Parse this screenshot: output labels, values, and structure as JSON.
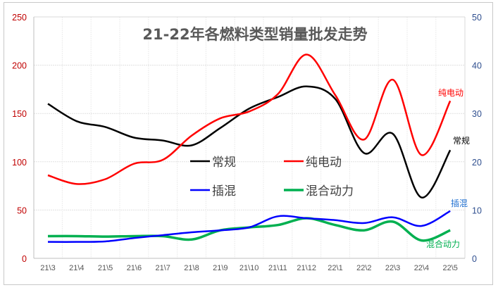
{
  "chart_data": {
    "type": "line",
    "title": "21-22年各燃料类型销量批发走势",
    "categories": [
      "21\\3",
      "21\\4",
      "21\\5",
      "21\\6",
      "21\\7",
      "21\\8",
      "21\\9",
      "21\\10",
      "21\\11",
      "21\\12",
      "22\\1",
      "22\\2",
      "22\\3",
      "22\\4",
      "22\\5"
    ],
    "y_left": {
      "range": [
        0,
        250
      ],
      "ticks": [
        "0",
        "50",
        "100",
        "150",
        "200",
        "250"
      ],
      "color": "#c00000"
    },
    "y_right": {
      "range": [
        0,
        50
      ],
      "ticks": [
        "0",
        "10",
        "20",
        "30",
        "40",
        "50"
      ],
      "color": "#2f4f8f"
    },
    "grid": true,
    "legend_placement": "center",
    "smooth": true,
    "series": [
      {
        "name": "常规",
        "axis": "left",
        "color": "#000000",
        "end_label": "常规",
        "values": [
          160,
          142,
          136,
          125,
          122,
          117,
          135,
          155,
          167,
          178,
          165,
          109,
          129,
          63,
          112
        ]
      },
      {
        "name": "纯电动",
        "axis": "left",
        "color": "#ff0000",
        "end_label": "纯电动",
        "values": [
          86,
          77,
          82,
          98,
          102,
          127,
          145,
          152,
          170,
          211,
          169,
          123,
          185,
          107,
          163
        ]
      },
      {
        "name": "插混",
        "axis": "right",
        "color": "#0000ff",
        "end_label": "插混",
        "end_label_color": "#1f6fd0",
        "values": [
          3.4,
          3.4,
          3.5,
          4.2,
          4.8,
          5.4,
          5.8,
          6.4,
          8.7,
          8.3,
          7.9,
          7.3,
          8.5,
          6.7,
          9.8
        ]
      },
      {
        "name": "混合动力",
        "axis": "right",
        "color": "#00b050",
        "end_label": "混合动力",
        "values": [
          4.6,
          4.6,
          4.5,
          4.6,
          4.6,
          3.9,
          5.8,
          6.4,
          6.9,
          8.3,
          6.9,
          5.8,
          7.6,
          3.7,
          5.8
        ]
      }
    ]
  }
}
